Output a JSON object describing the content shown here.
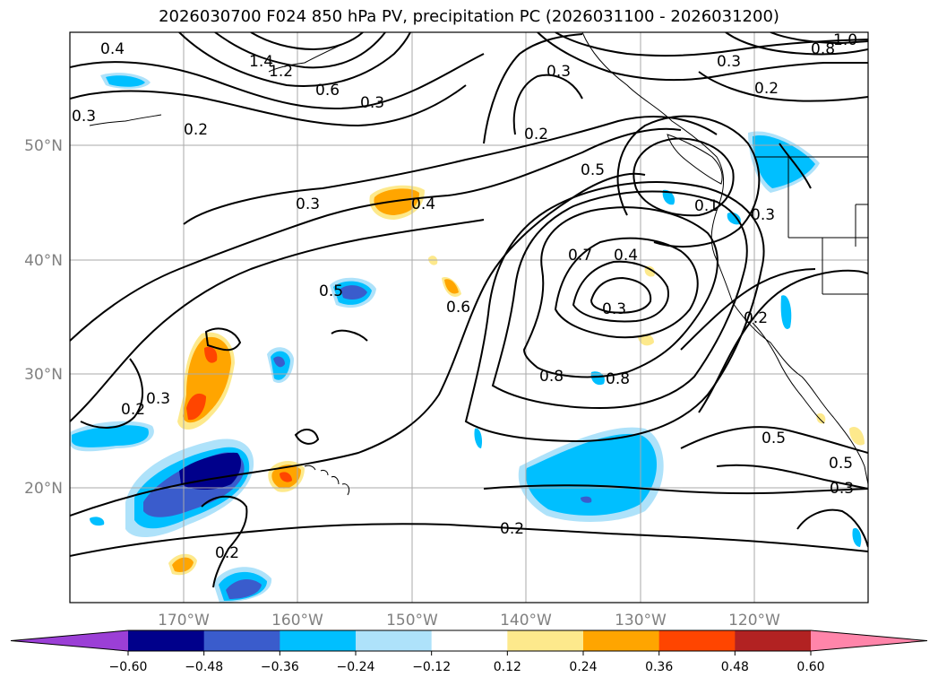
{
  "title": "2026030700 F024 850 hPa PV, precipitation PC (2026031100 - 2026031200)",
  "map": {
    "lat_ticks": [
      "50°N",
      "40°N",
      "30°N",
      "20°N"
    ],
    "lon_ticks": [
      "170°W",
      "160°W",
      "150°W",
      "140°W",
      "130°W",
      "120°W"
    ],
    "contour_labels": [
      "0.4",
      "1.4",
      "1.2",
      "0.6",
      "0.3",
      "0.2",
      "0.3",
      "0.3",
      "0.3",
      "0.2",
      "0.2",
      "0.3",
      "0.5",
      "0.4",
      "0.5",
      "0.7",
      "0.4",
      "0.6",
      "0.3",
      "0.8",
      "0.8",
      "0.3",
      "0.2",
      "0.3",
      "0.2",
      "0.2",
      "0.5",
      "0.5",
      "0.3",
      "0.1",
      "1.0",
      "0.8"
    ]
  },
  "colorbar": {
    "ticks": [
      "−0.60",
      "−0.48",
      "−0.36",
      "−0.24",
      "−0.12",
      "0.12",
      "0.24",
      "0.36",
      "0.48",
      "0.60"
    ],
    "colors": [
      "#9b3fd6",
      "#00008b",
      "#3a5ccc",
      "#00bfff",
      "#aee2fa",
      "#ffffff",
      "#fde98c",
      "#ffa500",
      "#ff4500",
      "#b22222",
      "#ff85aa"
    ]
  }
}
